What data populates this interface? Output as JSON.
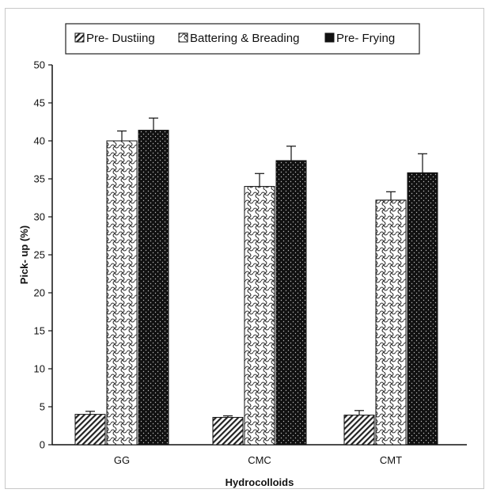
{
  "chart_data": {
    "type": "bar",
    "title": "",
    "xlabel": "Hydrocolloids",
    "ylabel": "Pick- up (%)",
    "categories": [
      "GG",
      "CMC",
      "CMT"
    ],
    "ylim": [
      0,
      50
    ],
    "yticks": [
      0,
      5,
      10,
      15,
      20,
      25,
      30,
      35,
      40,
      45,
      50
    ],
    "grid": false,
    "legend_position": "top",
    "series": [
      {
        "name": "Pre- Dustiing",
        "pattern": "diagonal-hatch",
        "values": [
          4.0,
          3.6,
          3.9
        ],
        "errors": [
          0.4,
          0.2,
          0.6
        ]
      },
      {
        "name": "Battering & Breading",
        "pattern": "wave-check",
        "values": [
          40.0,
          34.0,
          32.2
        ],
        "errors": [
          1.3,
          1.7,
          1.1
        ]
      },
      {
        "name": "Pre- Frying",
        "pattern": "dotted-black",
        "values": [
          41.4,
          37.4,
          35.8
        ],
        "errors": [
          1.6,
          1.9,
          2.5
        ]
      }
    ]
  },
  "colors": {
    "axis": "#111111",
    "bar_dark": "#111111",
    "bar_light": "#ffffff"
  }
}
